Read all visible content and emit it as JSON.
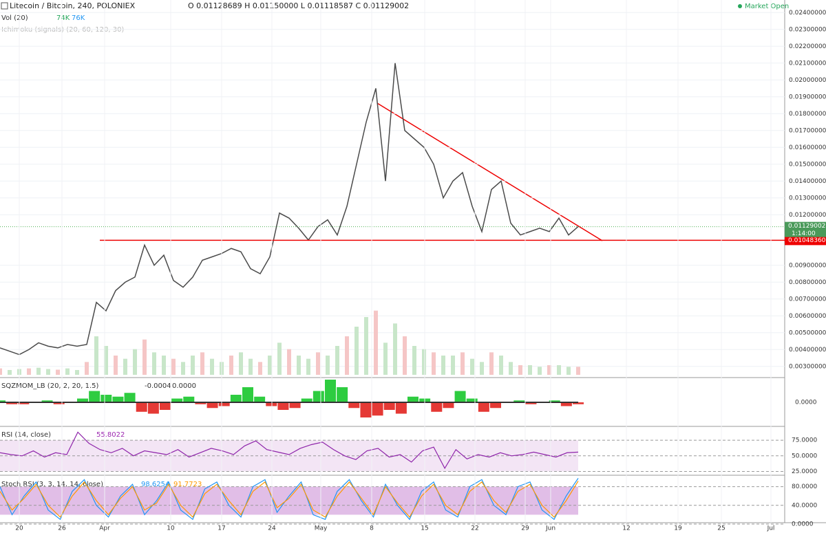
{
  "header": {
    "symbol": "Litecoin / Bitcoin, 240, POLONIEX",
    "ohlc": "O 0.01128689 H 0.01150000 L 0.01118587 C 0.01129002",
    "status": "Market Open"
  },
  "studies": {
    "volume": {
      "label": "Vol (20)",
      "v1": "74K",
      "v2": "76K"
    },
    "ichimoku": {
      "label": "Ichimoku (signals) (20, 60, 120, 30)"
    }
  },
  "price_axis": {
    "ylim": [
      0.0025,
      0.0245
    ],
    "ticks": [
      {
        "value": 0.024,
        "label": "0.02400000"
      },
      {
        "value": 0.023,
        "label": "0.02300000"
      },
      {
        "value": 0.022,
        "label": "0.02200000"
      },
      {
        "value": 0.021,
        "label": "0.02100000"
      },
      {
        "value": 0.02,
        "label": "0.02000000"
      },
      {
        "value": 0.019,
        "label": "0.01900000"
      },
      {
        "value": 0.018,
        "label": "0.01800000"
      },
      {
        "value": 0.017,
        "label": "0.01700000"
      },
      {
        "value": 0.016,
        "label": "0.01600000"
      },
      {
        "value": 0.015,
        "label": "0.01500000"
      },
      {
        "value": 0.014,
        "label": "0.01400000"
      },
      {
        "value": 0.013,
        "label": "0.01300000"
      },
      {
        "value": 0.012,
        "label": "0.01200000"
      },
      {
        "value": 0.009,
        "label": "0.00900000"
      },
      {
        "value": 0.008,
        "label": "0.00800000"
      },
      {
        "value": 0.007,
        "label": "0.00700000"
      },
      {
        "value": 0.006,
        "label": "0.00600000"
      },
      {
        "value": 0.005,
        "label": "0.00500000"
      },
      {
        "value": 0.004,
        "label": "0.00400000"
      },
      {
        "value": 0.003,
        "label": "0.00300000"
      }
    ],
    "last_price": {
      "value": 0.01129002,
      "label": "0.01129002"
    },
    "countdown": "1:14:00",
    "support": {
      "value": 0.0104836,
      "label": "0.01048360"
    }
  },
  "price": [
    0.0041,
    0.0039,
    0.0037,
    0.004,
    0.0044,
    0.0042,
    0.0041,
    0.0043,
    0.0042,
    0.0043,
    0.0068,
    0.0063,
    0.0075,
    0.008,
    0.0083,
    0.0102,
    0.009,
    0.0096,
    0.0081,
    0.0077,
    0.0083,
    0.0093,
    0.0095,
    0.0097,
    0.01,
    0.0098,
    0.0088,
    0.0085,
    0.0095,
    0.0121,
    0.0118,
    0.0112,
    0.0105,
    0.0113,
    0.0117,
    0.0108,
    0.0125,
    0.015,
    0.0175,
    0.0195,
    0.014,
    0.021,
    0.017,
    0.0165,
    0.016,
    0.015,
    0.013,
    0.014,
    0.0145,
    0.0125,
    0.011,
    0.0135,
    0.014,
    0.0115,
    0.0108,
    0.011,
    0.0112,
    0.011,
    0.0118,
    0.0108,
    0.0113
  ],
  "volume": {
    "vlim": [
      0,
      300
    ],
    "values": [
      20,
      15,
      18,
      20,
      22,
      18,
      16,
      20,
      15,
      40,
      120,
      90,
      60,
      50,
      80,
      110,
      70,
      60,
      50,
      40,
      60,
      70,
      50,
      40,
      60,
      70,
      50,
      40,
      60,
      100,
      80,
      60,
      50,
      70,
      60,
      90,
      120,
      150,
      180,
      200,
      100,
      160,
      120,
      90,
      80,
      70,
      60,
      60,
      70,
      50,
      40,
      70,
      60,
      40,
      30,
      30,
      25,
      30,
      30,
      25,
      25
    ]
  },
  "sqzmom": {
    "label": "SQZMOM_LB (20, 2, 20, 1.5)",
    "v1": "-0.0004",
    "v2": "0.0000",
    "ylim": [
      -0.0012,
      0.0012
    ],
    "tick": {
      "value": 0,
      "label": "0.0000"
    },
    "values": [
      0.0001,
      -0.0001,
      -0.0001,
      0,
      0.0001,
      -0.0001,
      0,
      0.0002,
      0.0006,
      0.0004,
      0.0003,
      0.0005,
      -0.0005,
      -0.0006,
      -0.0004,
      0.0002,
      0.0003,
      -0.0001,
      -0.0003,
      -0.0002,
      0.0004,
      0.0008,
      0.0003,
      -0.0002,
      -0.0004,
      -0.0003,
      0.0002,
      0.0006,
      0.0012,
      0.0008,
      -0.0003,
      -0.0008,
      -0.0007,
      -0.0004,
      -0.0006,
      0.0003,
      0.0002,
      -0.0005,
      -0.0003,
      0.0006,
      0.0002,
      -0.0005,
      -0.0003,
      0,
      0.0001,
      -0.0001,
      0,
      0.0001,
      -0.0002,
      -0.0001
    ]
  },
  "rsi": {
    "label": "RSI (14, close)",
    "value_label": "55.8022",
    "ylim": [
      20,
      95
    ],
    "ticks": [
      {
        "value": 75,
        "label": "75.0000"
      },
      {
        "value": 50,
        "label": "50.0000"
      },
      {
        "value": 25,
        "label": "25.0000"
      }
    ],
    "values": [
      55,
      52,
      50,
      58,
      48,
      55,
      52,
      88,
      70,
      60,
      55,
      62,
      50,
      58,
      55,
      52,
      60,
      48,
      55,
      62,
      58,
      52,
      66,
      74,
      60,
      56,
      52,
      62,
      68,
      72,
      60,
      50,
      44,
      58,
      62,
      48,
      52,
      40,
      58,
      64,
      30,
      60,
      45,
      52,
      48,
      55,
      50,
      52,
      56,
      52,
      48,
      55,
      56
    ]
  },
  "stoch_rsi": {
    "label": "Stoch RSI (3, 3, 14, 14, close)",
    "k_label": "98.6254",
    "d_label": "91.7723",
    "ylim": [
      0,
      100
    ],
    "ticks": [
      {
        "value": 80,
        "label": "80.0000"
      },
      {
        "value": 40,
        "label": "40.0000"
      },
      {
        "value": 0,
        "label": "0.0000"
      }
    ],
    "k": [
      80,
      20,
      60,
      90,
      30,
      10,
      70,
      95,
      40,
      15,
      60,
      85,
      20,
      50,
      90,
      30,
      10,
      75,
      90,
      40,
      15,
      80,
      95,
      25,
      60,
      90,
      20,
      10,
      70,
      95,
      50,
      15,
      85,
      40,
      10,
      70,
      90,
      30,
      15,
      80,
      95,
      40,
      20,
      80,
      90,
      30,
      10,
      60,
      98
    ],
    "d": [
      70,
      30,
      55,
      85,
      40,
      15,
      60,
      90,
      50,
      20,
      55,
      80,
      30,
      45,
      85,
      40,
      15,
      65,
      85,
      50,
      20,
      70,
      90,
      35,
      55,
      85,
      30,
      15,
      60,
      90,
      55,
      20,
      80,
      45,
      15,
      60,
      85,
      40,
      20,
      70,
      90,
      50,
      25,
      70,
      85,
      40,
      15,
      50,
      92
    ]
  },
  "dates": [
    "20",
    "26",
    "Apr",
    "10",
    "17",
    "24",
    "May",
    "8",
    "15",
    "22",
    "29",
    "Jun",
    "12",
    "19",
    "25",
    "Jul"
  ]
}
